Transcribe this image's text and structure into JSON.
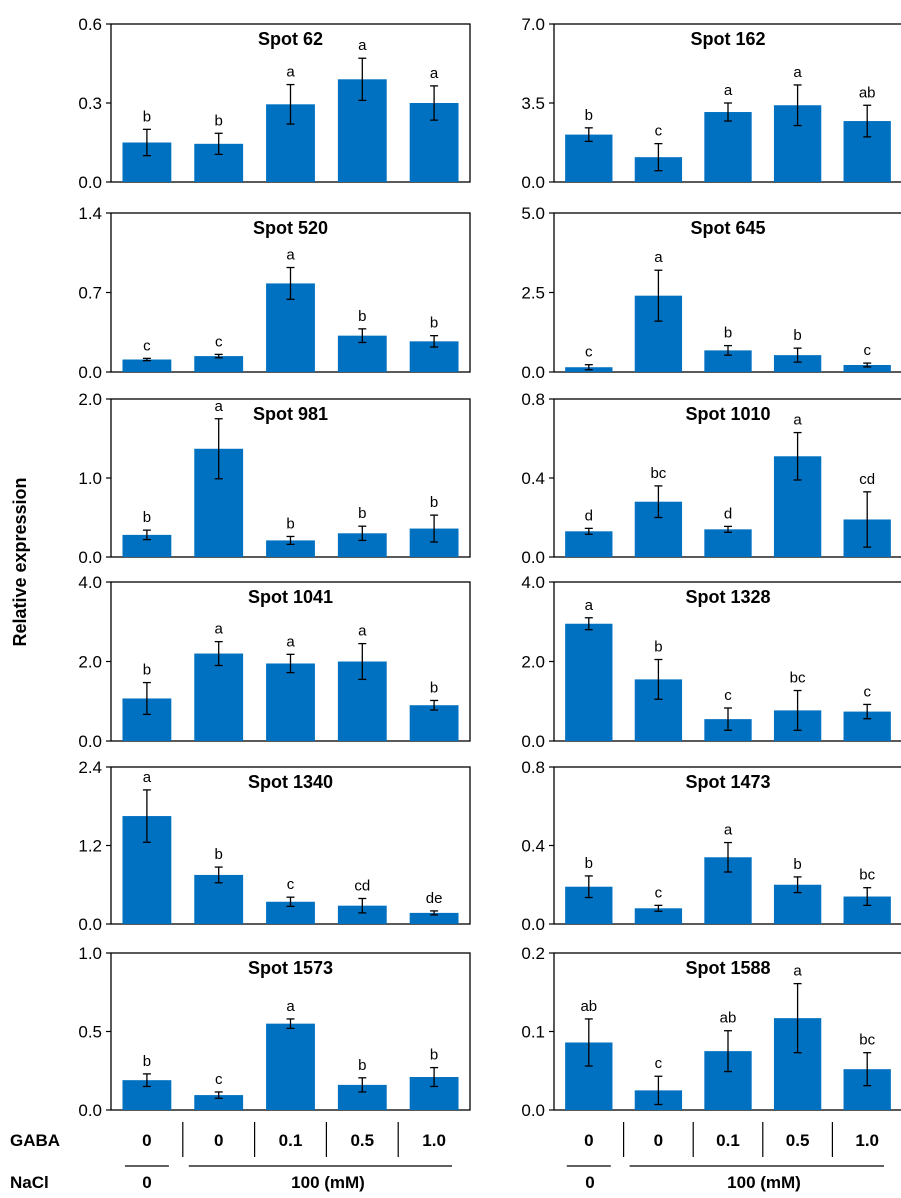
{
  "figure": {
    "ylabel": "Relative expression",
    "bar_color": "#0070C0",
    "bottom_rows": {
      "gaba": {
        "label": "GABA",
        "values": [
          "0",
          "0",
          "0.1",
          "0.5",
          "1.0"
        ]
      },
      "nacl": {
        "label": "NaCl",
        "control": "0",
        "treatment": "100 (mM)"
      }
    }
  },
  "chart_data": [
    {
      "type": "bar",
      "title": "Spot 62",
      "ylim": [
        0,
        0.6
      ],
      "yticks": [
        "0.0",
        "0.3",
        "0.6"
      ],
      "values": [
        0.15,
        0.145,
        0.295,
        0.39,
        0.3
      ],
      "errors": [
        0.05,
        0.04,
        0.075,
        0.08,
        0.065
      ],
      "letters": [
        "b",
        "b",
        "a",
        "a",
        "a"
      ]
    },
    {
      "type": "bar",
      "title": "Spot 162",
      "ylim": [
        0,
        7.0
      ],
      "yticks": [
        "0.0",
        "3.5",
        "7.0"
      ],
      "values": [
        2.1,
        1.1,
        3.1,
        3.4,
        2.7
      ],
      "errors": [
        0.3,
        0.6,
        0.4,
        0.9,
        0.7
      ],
      "letters": [
        "b",
        "c",
        "a",
        "a",
        "ab"
      ]
    },
    {
      "type": "bar",
      "title": "Spot 520",
      "ylim": [
        0,
        1.4
      ],
      "yticks": [
        "0.0",
        "0.7",
        "1.4"
      ],
      "values": [
        0.11,
        0.14,
        0.78,
        0.32,
        0.27
      ],
      "errors": [
        0.01,
        0.015,
        0.14,
        0.06,
        0.05
      ],
      "letters": [
        "c",
        "c",
        "a",
        "b",
        "b"
      ]
    },
    {
      "type": "bar",
      "title": "Spot 645",
      "ylim": [
        0,
        5.0
      ],
      "yticks": [
        "0.0",
        "2.5",
        "5.0"
      ],
      "values": [
        0.15,
        2.4,
        0.68,
        0.53,
        0.22
      ],
      "errors": [
        0.08,
        0.8,
        0.15,
        0.22,
        0.06
      ],
      "letters": [
        "c",
        "a",
        "b",
        "b",
        "c"
      ]
    },
    {
      "type": "bar",
      "title": "Spot 981",
      "ylim": [
        0,
        2.0
      ],
      "yticks": [
        "0.0",
        "1.0",
        "2.0"
      ],
      "values": [
        0.28,
        1.37,
        0.21,
        0.3,
        0.36
      ],
      "errors": [
        0.06,
        0.38,
        0.05,
        0.09,
        0.17
      ],
      "letters": [
        "b",
        "a",
        "b",
        "b",
        "b"
      ]
    },
    {
      "type": "bar",
      "title": "Spot 1010",
      "ylim": [
        0,
        0.8
      ],
      "yticks": [
        "0.0",
        "0.4",
        "0.8"
      ],
      "values": [
        0.13,
        0.28,
        0.14,
        0.51,
        0.19
      ],
      "errors": [
        0.015,
        0.08,
        0.015,
        0.12,
        0.14
      ],
      "letters": [
        "d",
        "bc",
        "d",
        "a",
        "cd"
      ]
    },
    {
      "type": "bar",
      "title": "Spot 1041",
      "ylim": [
        0,
        4.0
      ],
      "yticks": [
        "0.0",
        "2.0",
        "4.0"
      ],
      "values": [
        1.07,
        2.2,
        1.95,
        2.0,
        0.9
      ],
      "errors": [
        0.4,
        0.3,
        0.23,
        0.45,
        0.12
      ],
      "letters": [
        "b",
        "a",
        "a",
        "a",
        "b"
      ]
    },
    {
      "type": "bar",
      "title": "Spot 1328",
      "ylim": [
        0,
        4.0
      ],
      "yticks": [
        "0.0",
        "2.0",
        "4.0"
      ],
      "values": [
        2.95,
        1.55,
        0.55,
        0.77,
        0.74
      ],
      "errors": [
        0.15,
        0.5,
        0.28,
        0.5,
        0.18
      ],
      "letters": [
        "a",
        "b",
        "c",
        "bc",
        "c"
      ]
    },
    {
      "type": "bar",
      "title": "Spot 1340",
      "ylim": [
        0,
        2.4
      ],
      "yticks": [
        "0.0",
        "1.2",
        "2.4"
      ],
      "values": [
        1.65,
        0.75,
        0.34,
        0.28,
        0.17
      ],
      "errors": [
        0.4,
        0.12,
        0.07,
        0.11,
        0.03
      ],
      "letters": [
        "a",
        "b",
        "c",
        "cd",
        "de"
      ]
    },
    {
      "type": "bar",
      "title": "Spot 1473",
      "ylim": [
        0,
        0.8
      ],
      "yticks": [
        "0.0",
        "0.4",
        "0.8"
      ],
      "values": [
        0.19,
        0.08,
        0.34,
        0.2,
        0.14
      ],
      "errors": [
        0.055,
        0.015,
        0.075,
        0.04,
        0.045
      ],
      "letters": [
        "b",
        "c",
        "a",
        "b",
        "bc"
      ]
    },
    {
      "type": "bar",
      "title": "Spot 1573",
      "ylim": [
        0,
        1.0
      ],
      "yticks": [
        "0.0",
        "0.5",
        "1.0"
      ],
      "values": [
        0.19,
        0.095,
        0.55,
        0.16,
        0.21
      ],
      "errors": [
        0.04,
        0.02,
        0.03,
        0.045,
        0.06
      ],
      "letters": [
        "b",
        "c",
        "a",
        "b",
        "b"
      ]
    },
    {
      "type": "bar",
      "title": "Spot 1588",
      "ylim": [
        0,
        0.2
      ],
      "yticks": [
        "0.0",
        "0.1",
        "0.2"
      ],
      "values": [
        0.086,
        0.025,
        0.075,
        0.117,
        0.052
      ],
      "errors": [
        0.03,
        0.018,
        0.026,
        0.044,
        0.021
      ],
      "letters": [
        "ab",
        "c",
        "ab",
        "a",
        "bc"
      ]
    }
  ]
}
